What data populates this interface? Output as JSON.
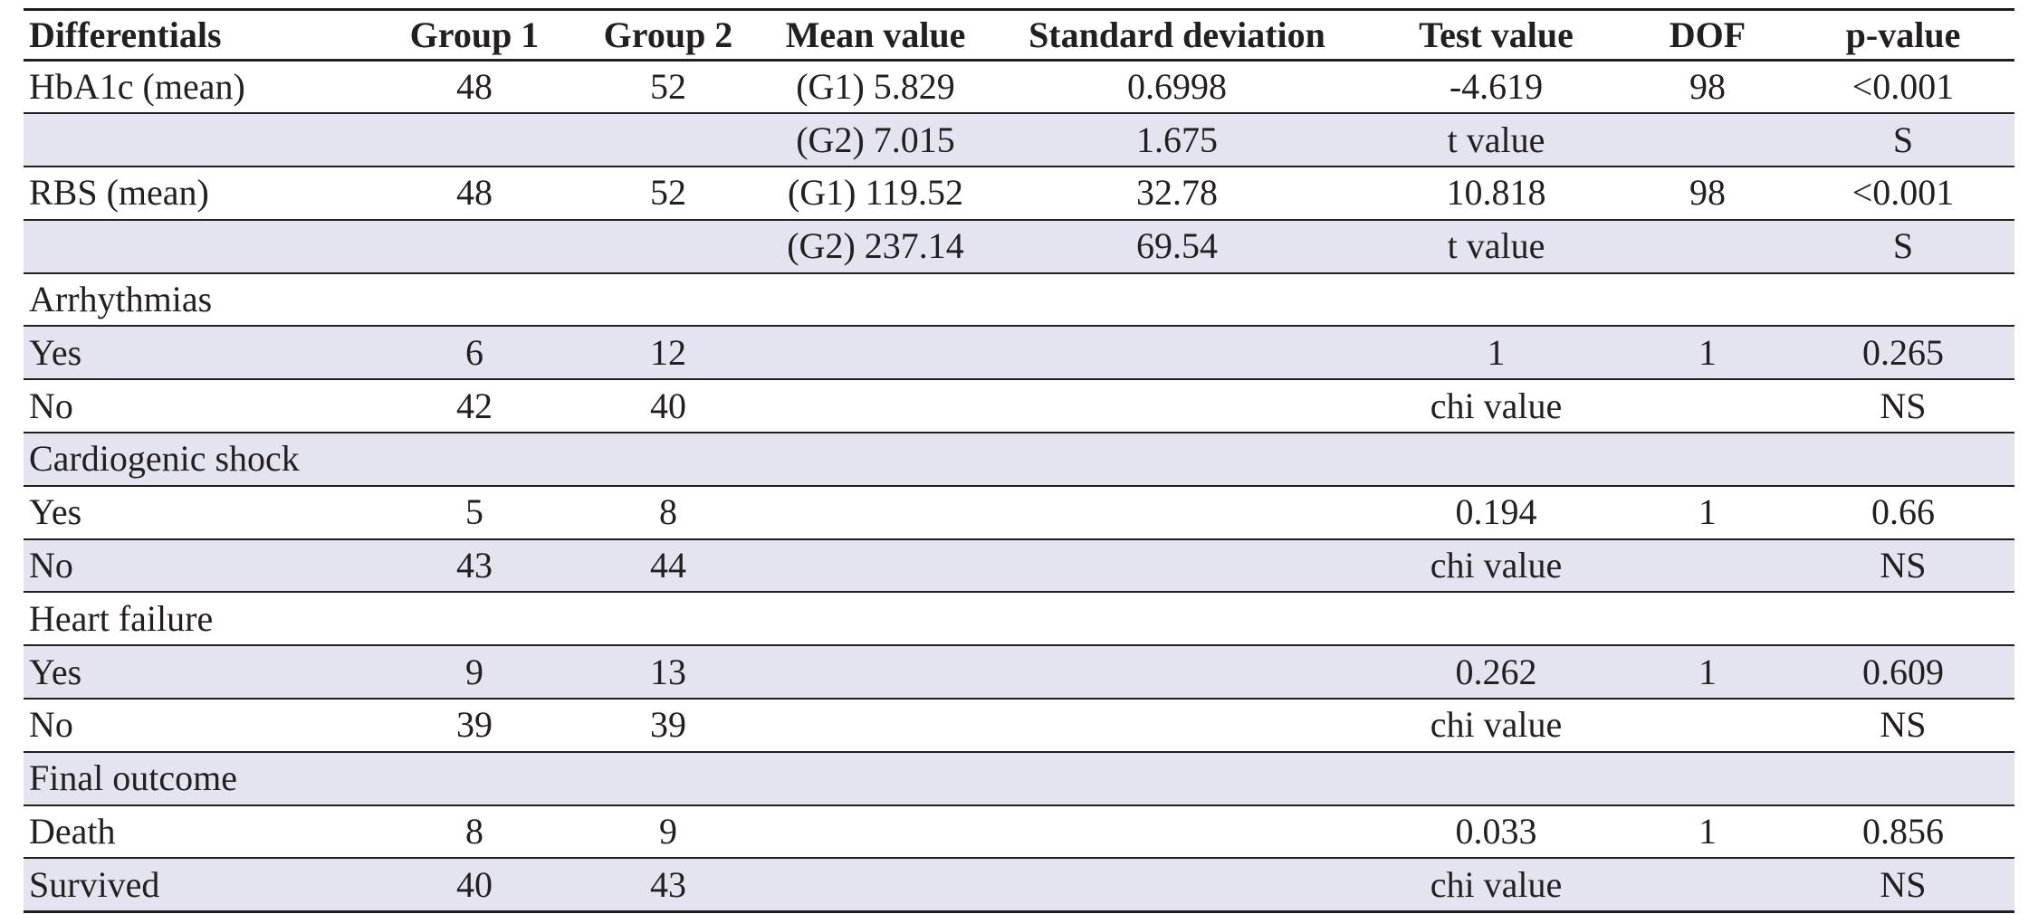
{
  "table": {
    "headers": [
      "Differentials",
      "Group 1",
      "Group 2",
      "Mean value",
      "Standard deviation",
      "Test value",
      "DOF",
      "p-value"
    ],
    "rows": [
      {
        "shaded": false,
        "cells": [
          "HbA1c (mean)",
          "48",
          "52",
          "(G1) 5.829",
          "0.6998",
          "-4.619",
          "98",
          "<0.001"
        ]
      },
      {
        "shaded": true,
        "cells": [
          "",
          "",
          "",
          "(G2) 7.015",
          "1.675",
          "t value",
          "",
          "S"
        ]
      },
      {
        "shaded": false,
        "cells": [
          "RBS (mean)",
          "48",
          "52",
          "(G1) 119.52",
          "32.78",
          "10.818",
          "98",
          "<0.001"
        ]
      },
      {
        "shaded": true,
        "cells": [
          "",
          "",
          "",
          "(G2) 237.14",
          "69.54",
          "t value",
          "",
          "S"
        ]
      },
      {
        "shaded": false,
        "cells": [
          "Arrhythmias",
          "",
          "",
          "",
          "",
          "",
          "",
          ""
        ]
      },
      {
        "shaded": true,
        "cells": [
          "Yes",
          "6",
          "12",
          "",
          "",
          "1",
          "1",
          "0.265"
        ]
      },
      {
        "shaded": false,
        "cells": [
          "No",
          "42",
          "40",
          "",
          "",
          "chi value",
          "",
          "NS"
        ]
      },
      {
        "shaded": true,
        "cells": [
          "Cardiogenic shock",
          "",
          "",
          "",
          "",
          "",
          "",
          ""
        ]
      },
      {
        "shaded": false,
        "cells": [
          "Yes",
          "5",
          "8",
          "",
          "",
          "0.194",
          "1",
          "0.66"
        ]
      },
      {
        "shaded": true,
        "cells": [
          "No",
          "43",
          "44",
          "",
          "",
          "chi value",
          "",
          "NS"
        ]
      },
      {
        "shaded": false,
        "cells": [
          "Heart failure",
          "",
          "",
          "",
          "",
          "",
          "",
          ""
        ]
      },
      {
        "shaded": true,
        "cells": [
          "Yes",
          "9",
          "13",
          "",
          "",
          "0.262",
          "1",
          "0.609"
        ]
      },
      {
        "shaded": false,
        "cells": [
          "No",
          "39",
          "39",
          "",
          "",
          "chi value",
          "",
          "NS"
        ]
      },
      {
        "shaded": true,
        "cells": [
          "Final outcome",
          "",
          "",
          "",
          "",
          "",
          "",
          ""
        ]
      },
      {
        "shaded": false,
        "cells": [
          "Death",
          "8",
          "9",
          "",
          "",
          "0.033",
          "1",
          "0.856"
        ]
      },
      {
        "shaded": true,
        "cells": [
          "Survived",
          "40",
          "43",
          "",
          "",
          "chi value",
          "",
          "NS"
        ]
      }
    ]
  },
  "colors": {
    "shade": "#e4e4f1",
    "text": "#231f20",
    "rule": "#231f20"
  }
}
